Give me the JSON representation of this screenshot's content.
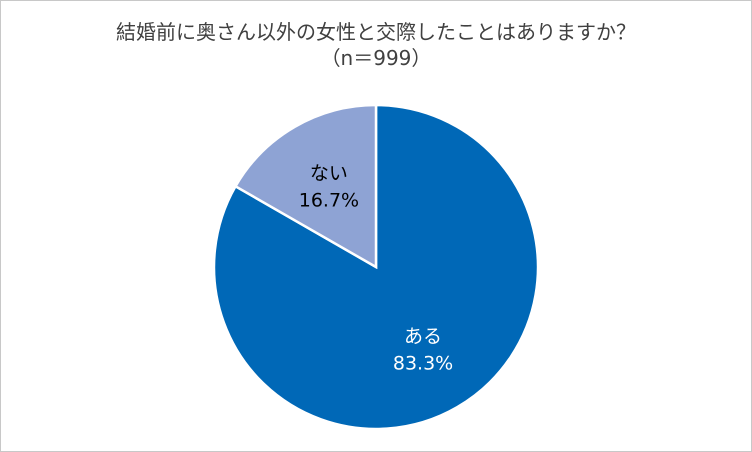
{
  "chart_data": {
    "type": "pie",
    "title": "結婚前に奥さん以外の女性と交際したことはありますか？",
    "subtitle": "（n＝999）",
    "slices": [
      {
        "label": "ある",
        "value": 83.3,
        "value_label": "83.3%",
        "color": "#0068B7",
        "label_color": "#FFFFFF"
      },
      {
        "label": "ない",
        "value": 16.7,
        "value_label": "16.7%",
        "color": "#8EA3D4",
        "label_color": "#000000"
      }
    ],
    "start_angle_deg": 0,
    "direction": "clockwise",
    "slice_border_color": "#FFFFFF",
    "legend": "none"
  }
}
